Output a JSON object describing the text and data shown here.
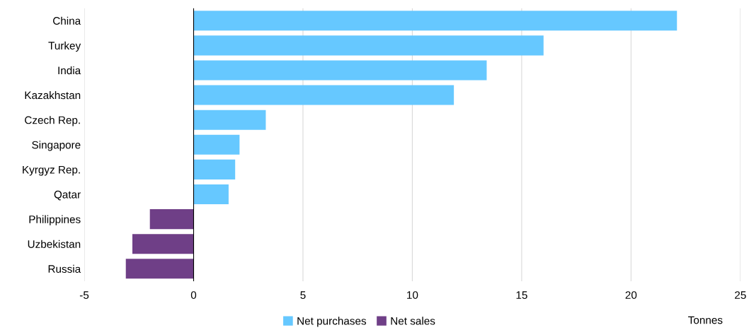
{
  "chart_data": {
    "type": "bar",
    "orientation": "horizontal",
    "stacked": true,
    "categories": [
      "China",
      "Turkey",
      "India",
      "Kazakhstan",
      "Czech Rep.",
      "Singapore",
      "Kyrgyz Rep.",
      "Qatar",
      "Philippines",
      "Uzbekistan",
      "Russia"
    ],
    "series": [
      {
        "name": "Net purchases",
        "color": "#66c8ff",
        "values": [
          22.1,
          16.0,
          13.4,
          11.9,
          3.3,
          2.1,
          1.9,
          1.6,
          null,
          null,
          null
        ]
      },
      {
        "name": "Net sales",
        "color": "#6f3f87",
        "values": [
          null,
          null,
          null,
          null,
          null,
          null,
          null,
          null,
          -2.0,
          -2.8,
          -3.1
        ]
      }
    ],
    "xlabel": "Tonnes",
    "xlim": [
      -5,
      25
    ],
    "xticks": [
      -5,
      0,
      5,
      10,
      15,
      20,
      25
    ],
    "grid": "x",
    "legend": "bottom"
  }
}
